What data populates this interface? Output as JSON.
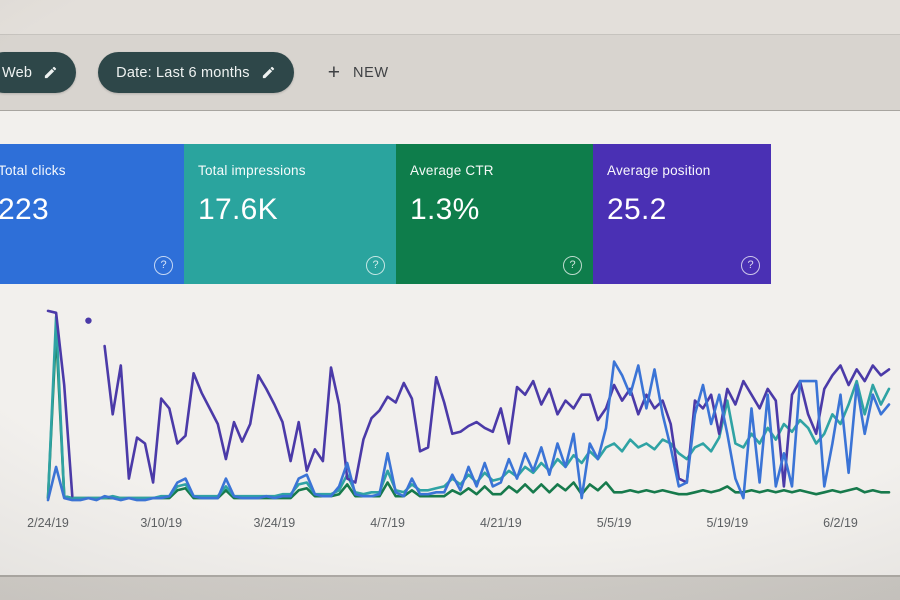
{
  "toolbar": {
    "chips": [
      {
        "label": "Web"
      },
      {
        "label": "Date: Last 6 months"
      }
    ],
    "plus_glyph": "+",
    "new_button_label": "NEW"
  },
  "metric_cards": [
    {
      "label": "Total clicks",
      "value": "223",
      "color": "#2e6fd8"
    },
    {
      "label": "Total impressions",
      "value": "17.6K",
      "color": "#2aa49e"
    },
    {
      "label": "Average CTR",
      "value": "1.3%",
      "color": "#0e7d4b"
    },
    {
      "label": "Average position",
      "value": "25.2",
      "color": "#4a30b4"
    }
  ],
  "help_icon_glyph": "?",
  "chart_data": {
    "type": "line",
    "grid": false,
    "legend": "none",
    "y_axis": "unlabeled in UI; series values are estimated % of plot height (0 = baseline, 100 = top)",
    "x_tick_labels": [
      "2/24/19",
      "3/10/19",
      "3/24/19",
      "4/7/19",
      "4/21/19",
      "5/5/19",
      "5/19/19",
      "6/2/19"
    ],
    "x_tick_indices": [
      0,
      14,
      28,
      42,
      56,
      70,
      84,
      98
    ],
    "n_points": 105,
    "series": [
      {
        "name": "Total clicks",
        "color": "#3b74d6",
        "values": [
          1,
          18,
          2,
          1,
          1,
          2,
          1,
          3,
          2,
          1,
          2,
          1,
          1,
          2,
          2,
          3,
          10,
          12,
          3,
          2,
          2,
          2,
          12,
          3,
          2,
          2,
          2,
          3,
          2,
          3,
          3,
          12,
          14,
          4,
          3,
          3,
          8,
          20,
          4,
          3,
          3,
          4,
          25,
          5,
          3,
          12,
          4,
          4,
          5,
          5,
          14,
          6,
          18,
          8,
          20,
          8,
          10,
          22,
          12,
          25,
          16,
          28,
          14,
          30,
          18,
          35,
          2,
          30,
          22,
          38,
          72,
          65,
          55,
          70,
          48,
          68,
          45,
          28,
          8,
          10,
          45,
          60,
          40,
          55,
          35,
          12,
          2,
          48,
          10,
          55,
          8,
          25,
          8,
          62,
          62,
          62,
          8,
          30,
          55,
          15,
          60,
          35,
          55,
          45,
          50
        ]
      },
      {
        "name": "Total impressions",
        "color": "#2fa3a4",
        "values": [
          2,
          95,
          3,
          2,
          2,
          2,
          2,
          2,
          3,
          2,
          2,
          2,
          2,
          2,
          3,
          3,
          8,
          9,
          3,
          3,
          3,
          3,
          8,
          3,
          3,
          3,
          3,
          3,
          3,
          4,
          4,
          9,
          10,
          4,
          4,
          4,
          6,
          14,
          5,
          4,
          5,
          5,
          16,
          6,
          5,
          9,
          6,
          6,
          7,
          8,
          12,
          9,
          14,
          10,
          15,
          11,
          12,
          16,
          13,
          18,
          15,
          20,
          16,
          22,
          18,
          24,
          20,
          26,
          22,
          28,
          30,
          26,
          32,
          28,
          30,
          27,
          32,
          30,
          25,
          22,
          28,
          30,
          26,
          33,
          52,
          30,
          28,
          35,
          30,
          38,
          32,
          40,
          36,
          42,
          38,
          30,
          35,
          45,
          40,
          50,
          62,
          45,
          60,
          50,
          58
        ]
      },
      {
        "name": "Average CTR",
        "color": "#177a4c",
        "values": [
          2,
          88,
          3,
          2,
          2,
          2,
          2,
          2,
          2,
          2,
          2,
          2,
          2,
          2,
          2,
          2,
          6,
          7,
          2,
          2,
          2,
          2,
          6,
          2,
          2,
          2,
          2,
          2,
          2,
          2,
          2,
          6,
          7,
          3,
          3,
          3,
          4,
          9,
          3,
          3,
          3,
          3,
          10,
          3,
          3,
          6,
          3,
          3,
          3,
          3,
          6,
          4,
          7,
          4,
          8,
          4,
          4,
          8,
          5,
          9,
          5,
          9,
          5,
          9,
          6,
          10,
          4,
          9,
          6,
          10,
          5,
          5,
          6,
          5,
          6,
          5,
          6,
          5,
          4,
          4,
          5,
          6,
          5,
          6,
          8,
          5,
          5,
          6,
          5,
          6,
          5,
          6,
          5,
          6,
          5,
          4,
          5,
          6,
          5,
          6,
          7,
          5,
          6,
          5,
          5
        ]
      },
      {
        "name": "Average position",
        "color": "#4b3aa8",
        "values": [
          98,
          97,
          60,
          3,
          null,
          93,
          null,
          80,
          45,
          70,
          12,
          33,
          30,
          10,
          53,
          48,
          30,
          34,
          66,
          56,
          48,
          40,
          22,
          41,
          31,
          40,
          65,
          58,
          50,
          41,
          21,
          41,
          16,
          27,
          21,
          69,
          50,
          12,
          10,
          32,
          43,
          47,
          54,
          51,
          61,
          53,
          26,
          28,
          64,
          51,
          35,
          36,
          39,
          41,
          38,
          36,
          48,
          30,
          59,
          55,
          62,
          50,
          58,
          45,
          52,
          48,
          55,
          55,
          42,
          48,
          60,
          52,
          58,
          45,
          55,
          48,
          52,
          40,
          12,
          10,
          52,
          48,
          55,
          35,
          58,
          50,
          62,
          55,
          48,
          58,
          52,
          8,
          55,
          62,
          45,
          35,
          58,
          65,
          70,
          60,
          68,
          62,
          70,
          65,
          68
        ]
      }
    ]
  }
}
